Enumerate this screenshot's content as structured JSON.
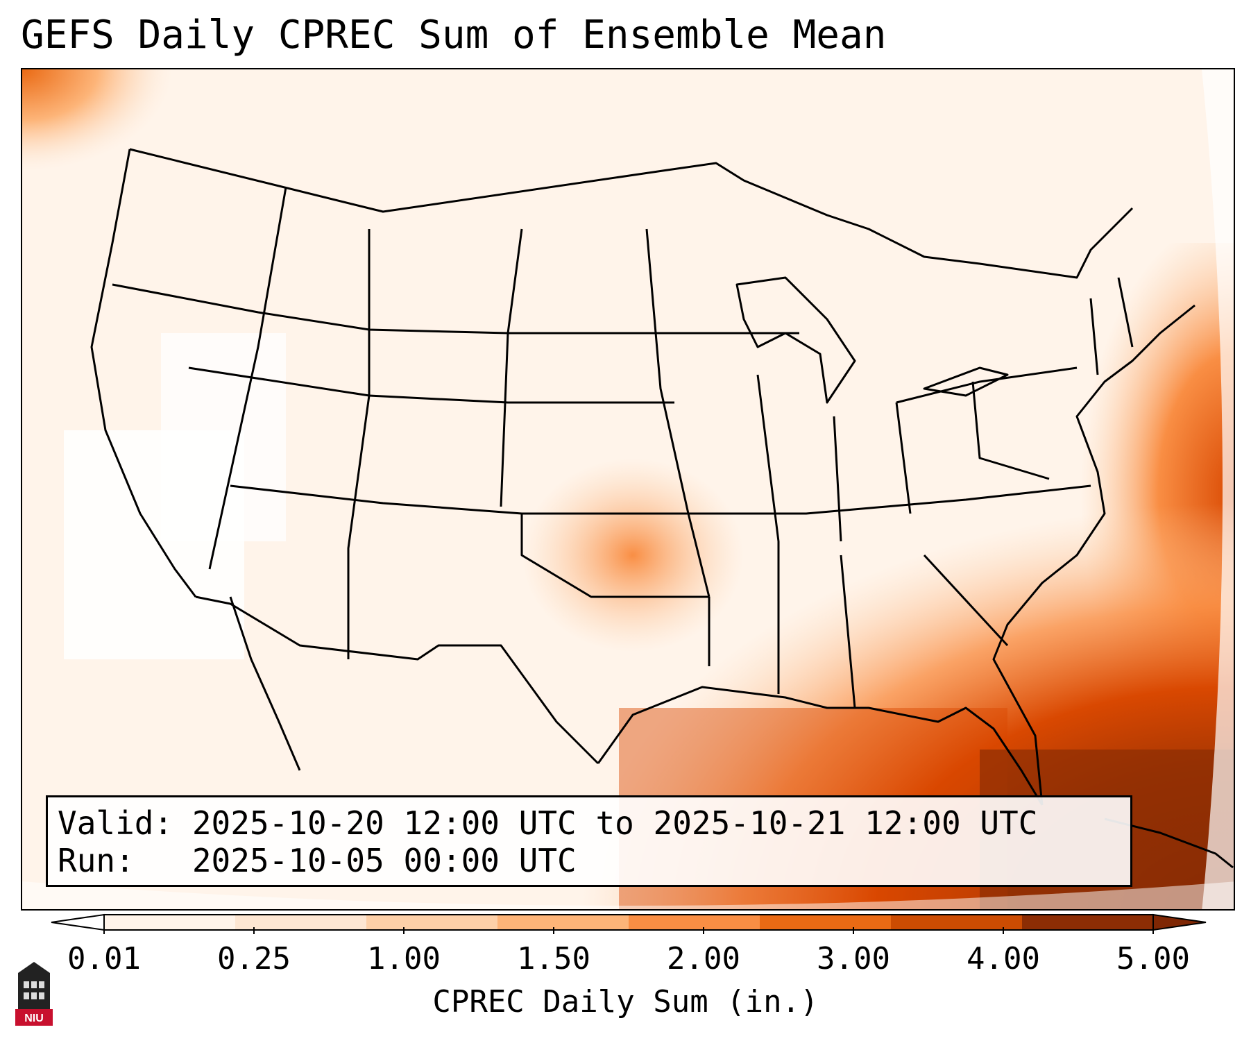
{
  "title": "GEFS Daily CPREC Sum of Ensemble Mean",
  "info": {
    "valid": "Valid: 2025-10-20 12:00 UTC to 2025-10-21 12:00 UTC",
    "run": "Run:   2025-10-05 00:00 UTC"
  },
  "colorbar": {
    "label": "CPREC Daily Sum (in.)",
    "ticks": [
      "0.01",
      "0.25",
      "1.00",
      "1.50",
      "2.00",
      "3.00",
      "4.00",
      "5.00"
    ],
    "colors": [
      "#fff4ea",
      "#fde6d2",
      "#fdd0a8",
      "#fdb478",
      "#f98e44",
      "#ea6a14",
      "#cc4c02",
      "#8c2d04"
    ],
    "under_color": "#ffffff",
    "over_color": "#7f2704"
  },
  "logo": {
    "text": "NIU",
    "name": "niu-logo"
  }
}
